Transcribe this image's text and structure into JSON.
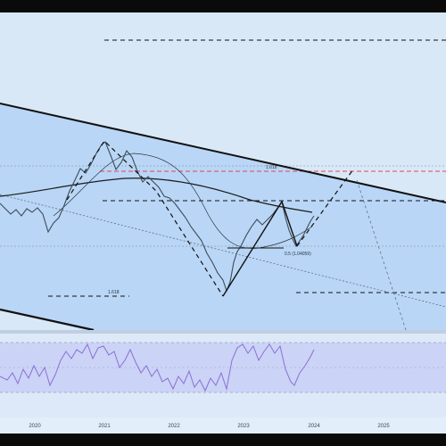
{
  "chart": {
    "annotations": {
      "fib_1618_upper": "1.618",
      "fib_1618_lower": "1.618",
      "fib_half": "0.5 (1.04059)"
    },
    "time_axis": {
      "ticks": [
        "2020",
        "2021",
        "2022",
        "2023",
        "2024",
        "2025"
      ]
    },
    "event_icon": "lightning-bolt-icon",
    "colors": {
      "background": "#d9e8f7",
      "channel_fill": "#b7d4f5",
      "trendline": "#111111",
      "red_level": "#e2435a",
      "rsi_line": "#8b6fd6",
      "rsi_band": "#c9d2f5"
    }
  }
}
